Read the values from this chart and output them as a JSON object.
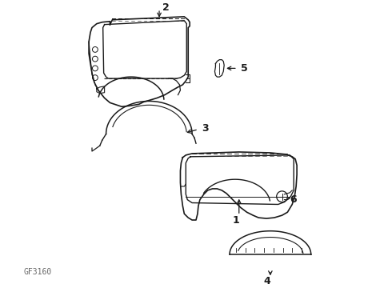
{
  "bg_color": "#ffffff",
  "line_color": "#1a1a1a",
  "label_color": "#1a1a1a",
  "fig_width": 4.9,
  "fig_height": 3.6,
  "dpi": 100,
  "diagram_id": "GF3160"
}
